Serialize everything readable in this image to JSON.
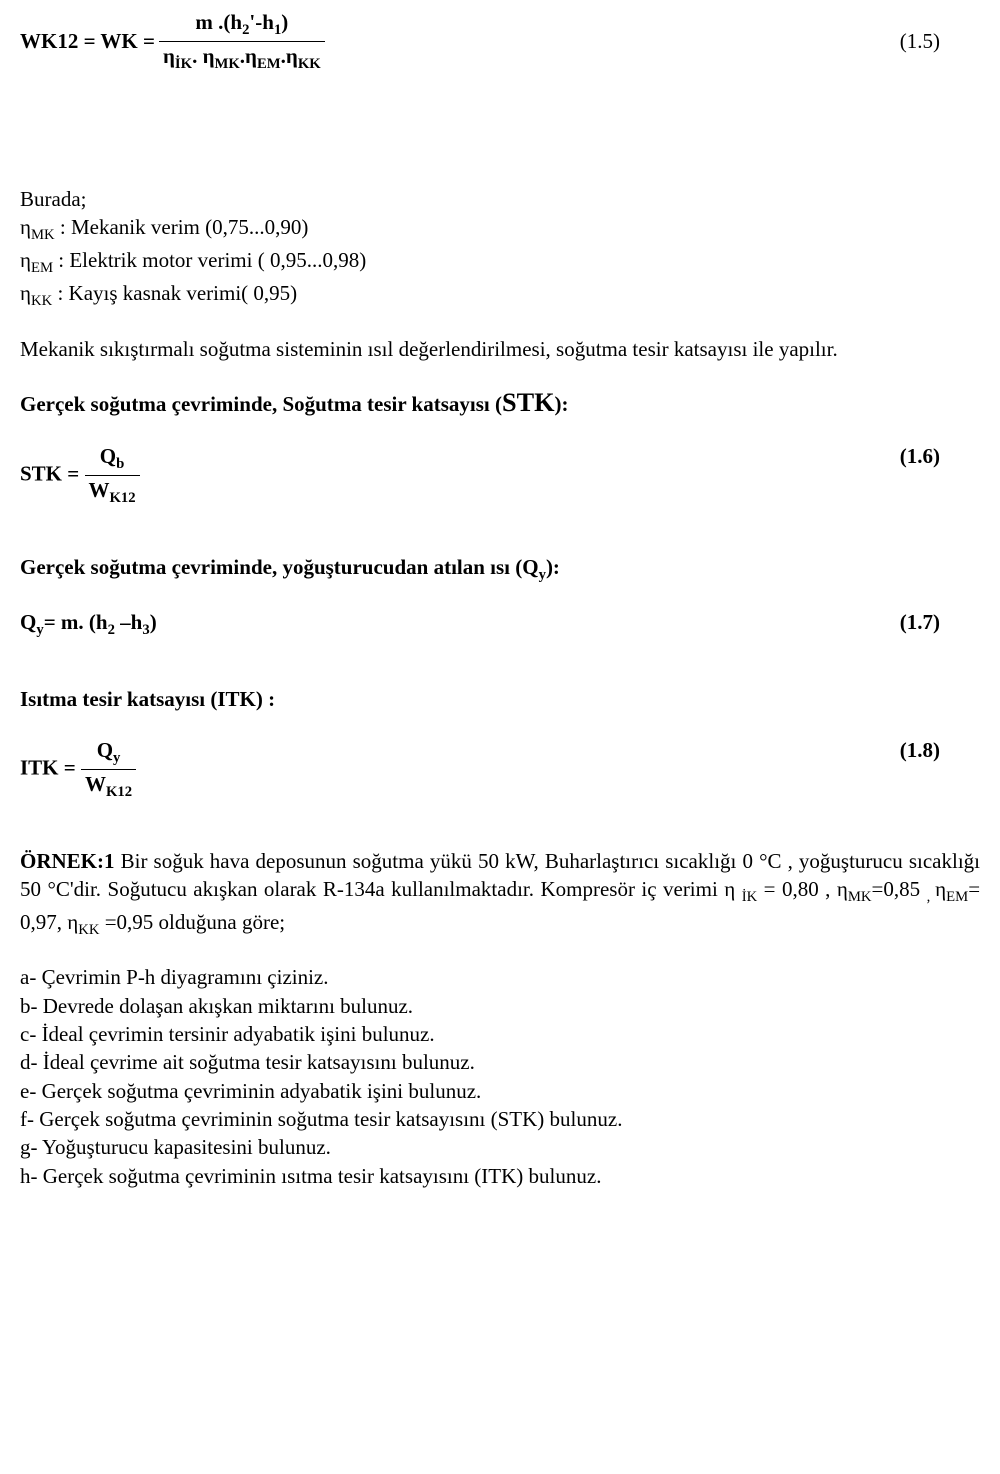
{
  "eq15": {
    "lhs": "WK12 = WK = ",
    "num_plain": "m .(h",
    "num_sub1": "2",
    "num_prime": "'",
    "num_dash": "-h",
    "num_sub2": "1",
    "num_close": ")",
    "den_pre": "η",
    "den_ik": "İK",
    "den_dot1": ". η",
    "den_mk": "MK",
    "den_dot2": ".η",
    "den_em": "EM",
    "den_dot3": ".η",
    "den_kk": "KK",
    "eqnum": "(1.5)"
  },
  "defs": {
    "burada": "Burada;",
    "mk_a": "η",
    "mk_sub": "MK",
    "mk_b": " : Mekanik verim (0,75...0,90)",
    "em_a": "η",
    "em_sub": "EM",
    "em_b": " :  Elektrik motor verimi ( 0,95...0,98)",
    "kk_a": "η",
    "kk_sub": "KK",
    "kk_b": " :  Kayış kasnak verimi( 0,95)"
  },
  "para1": "Mekanik sıkıştırmalı soğutma sisteminin ısıl değerlendirilmesi, soğutma tesir katsayısı ile yapılır.",
  "stk": {
    "title_a": "Gerçek soğutma çevriminde, Soğutma tesir katsayısı (",
    "title_big": "STK",
    "title_b": "):",
    "lhs": "STK = ",
    "num_a": "Q",
    "num_sub": "b",
    "den_a": "W",
    "den_sub": "K12",
    "eqnum": "(1.6)"
  },
  "qy": {
    "title": "Gerçek soğutma çevriminde,  yoğuşturucudan atılan ısı (Q",
    "title_sub": "y",
    "title_end": "):",
    "lhs_a": "Q",
    "lhs_sub": "y",
    "lhs_b": "= m. (h",
    "lhs_sub2": "2",
    "lhs_c": " –h",
    "lhs_sub3": "3",
    "lhs_d": ")",
    "eqnum": "(1.7)"
  },
  "itk": {
    "title": "Isıtma tesir katsayısı (ITK) :",
    "lhs": "ITK = ",
    "num_a": "Q",
    "num_sub": "y",
    "den_a": "W",
    "den_sub": "K12",
    "eqnum": "(1.8)"
  },
  "ornek": {
    "label": "ÖRNEK:1",
    "body1": "  Bir soğuk hava deposunun soğutma yükü  50 kW, Buharlaştırıcı sıcaklığı 0 °C , yoğuşturucu   sıcaklığı  50  °C'dir.  Soğutucu  akışkan  olarak  R-134a  kullanılmaktadır. Kompresör iç verimi ",
    "eta": "η ",
    "ik_sub": "İK",
    "v_ik": " = 0,80 ,  ",
    "eta2": "η",
    "mk_sub": "MK",
    "v_mk": "=0,85 ",
    "comma": ",  ",
    "eta3": "η",
    "em_sub": "EM",
    "v_em": "= 0,97,  ",
    "eta4": "η",
    "kk_sub": "KK",
    "v_kk": " =0,95 olduğuna göre;"
  },
  "list": {
    "a": "a- Çevrimin P-h  diyagramını çiziniz.",
    "b": "b- Devrede dolaşan akışkan miktarını bulunuz.",
    "c": "c- İdeal çevrimin tersinir adyabatik işini bulunuz.",
    "d": "d- İdeal çevrime ait soğutma tesir katsayısını bulunuz.",
    "e": "e- Gerçek soğutma çevriminin adyabatik işini bulunuz.",
    "f": "f-  Gerçek soğutma çevriminin soğutma tesir katsayısını (STK) bulunuz.",
    "g": "g- Yoğuşturucu kapasitesini bulunuz.",
    "h": "h-  Gerçek soğutma çevriminin ısıtma tesir katsayısını (ITK) bulunuz."
  }
}
